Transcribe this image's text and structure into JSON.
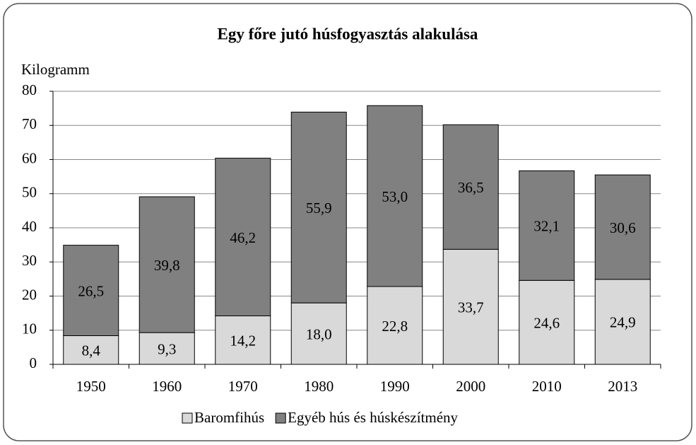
{
  "chart_data": {
    "type": "stacked_bar",
    "title": "Egy főre jutó húsfogyasztás alakulása",
    "y_label": "Kilogramm",
    "categories": [
      "1950",
      "1960",
      "1970",
      "1980",
      "1990",
      "2000",
      "2010",
      "2013"
    ],
    "series": [
      {
        "name": "Baromfihús",
        "color": "#d9d9d9",
        "values": [
          8.4,
          9.3,
          14.2,
          18.0,
          22.8,
          33.7,
          24.6,
          24.9
        ],
        "value_labels": [
          "8,4",
          "9,3",
          "14,2",
          "18,0",
          "22,8",
          "33,7",
          "24,6",
          "24,9"
        ]
      },
      {
        "name": "Egyéb hús és húskészítmény",
        "color": "#808080",
        "values": [
          26.5,
          39.8,
          46.2,
          55.9,
          53.0,
          36.5,
          32.1,
          30.6
        ],
        "value_labels": [
          "26,5",
          "39,8",
          "46,2",
          "55,9",
          "53,0",
          "36,5",
          "32,1",
          "30,6"
        ]
      }
    ],
    "ylim": [
      0,
      80
    ],
    "yticks": [
      0,
      10,
      20,
      30,
      40,
      50,
      60,
      70,
      80
    ],
    "grid": true,
    "legend": "bottom"
  }
}
